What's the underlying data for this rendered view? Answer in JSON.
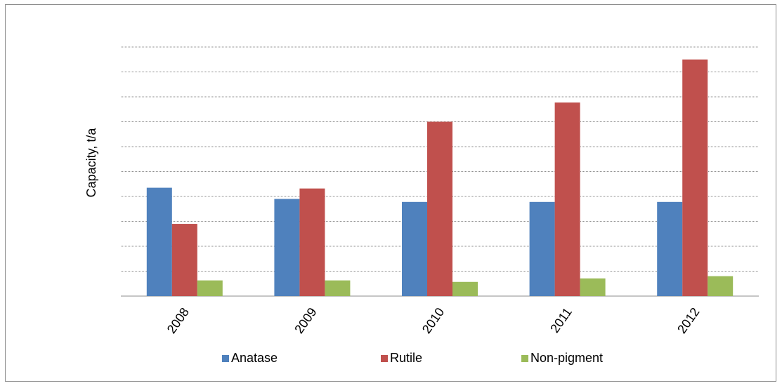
{
  "chart_data": {
    "type": "bar",
    "title": "",
    "xlabel": "",
    "ylabel": "Capacity, t/a",
    "categories": [
      "2008",
      "2009",
      "2010",
      "2011",
      "2012"
    ],
    "series": [
      {
        "name": "Anatase",
        "color": "#4f81bd",
        "values": [
          4.35,
          3.9,
          3.78,
          3.78,
          3.78
        ]
      },
      {
        "name": "Rutile",
        "color": "#c0504d",
        "values": [
          2.9,
          4.32,
          7.0,
          7.77,
          9.5
        ]
      },
      {
        "name": "Non-pigment",
        "color": "#9bbb59",
        "values": [
          0.63,
          0.63,
          0.57,
          0.71,
          0.8
        ]
      }
    ],
    "ylim": [
      0,
      10
    ],
    "grid": true,
    "legend_position": "bottom"
  }
}
